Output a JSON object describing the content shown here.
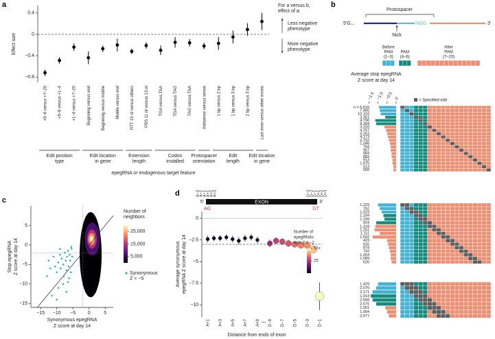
{
  "chart_data": [
    {
      "panel": "a",
      "type": "errorbar",
      "ylabel": "Effect size",
      "xlabel": "epegRNA or endogenous target feature",
      "categories": [
        "+5–6 versus +7–20",
        "+5–6 versus +1–4",
        "+1–4 versus +7–20",
        "Beginning versus end",
        "Beginning versus middle",
        "Middle versus end",
        "RTT 15 nt versus others",
        "PBS 11 nt versus 13 nt",
        "TGA versus TAA",
        "TGA versus TAG",
        "TAG versus TAA",
        "Antisense versus sense",
        "1 bp versus 2 bp",
        "1 bp versus 3 bp",
        "2 bp versus 3 bp",
        "Last exon versus other exons"
      ],
      "values": [
        -0.72,
        -0.49,
        -0.24,
        -0.44,
        -0.27,
        -0.2,
        -0.32,
        -0.21,
        -0.3,
        -0.15,
        -0.16,
        -0.22,
        -0.17,
        -0.05,
        0.09,
        0.24
      ],
      "errors": [
        0.06,
        0.06,
        0.07,
        0.12,
        0.06,
        0.12,
        0.05,
        0.06,
        0.09,
        0.1,
        0.07,
        0.06,
        0.12,
        0.12,
        0.12,
        0.16
      ],
      "color": "#000000",
      "ylim": [
        -0.9,
        0.54
      ],
      "yticks": [
        {
          "value": -0.8,
          "label": "−0.8"
        },
        {
          "value": -0.4,
          "label": "−0.4"
        },
        0,
        0.4
      ],
      "reference_line": 0,
      "groups": [
        {
          "lines": [
            "Edit position",
            "type"
          ],
          "size": 3
        },
        {
          "lines": [
            "Edit location",
            "in gene"
          ],
          "size": 3
        },
        {
          "lines": [
            "Extension",
            "length"
          ],
          "size": 2
        },
        {
          "lines": [
            "Codon",
            "installed"
          ],
          "size": 3
        },
        {
          "lines": [
            "Protospacer",
            "orientation"
          ],
          "size": 1
        },
        {
          "lines": [
            "Edit",
            "length"
          ],
          "size": 3
        },
        {
          "lines": [
            "Edit location",
            "in gene"
          ],
          "size": 1
        }
      ],
      "annotation": {
        "title_lines": [
          "For a versus b,",
          "effect of a:"
        ],
        "up_lines": [
          "Less negative",
          "phenotype"
        ],
        "down_lines": [
          "More negative",
          "phenotype"
        ]
      }
    },
    {
      "panel": "b",
      "type": "heatmap-bar",
      "diagram": {
        "protospacer": "Protospacer",
        "five_prime": "5′G...",
        "pam": "NGG",
        "three_prime": "3′",
        "nick": "Nick",
        "regions": [
          {
            "lines": [
              "Before",
              "PAM",
              "(1–3)"
            ],
            "size": 3,
            "color": "#45b2d4"
          },
          {
            "lines": [
              "PAM",
              "(4–6)"
            ],
            "size": 3,
            "color": "#178a7e"
          },
          {
            "lines": [
              "After",
              "PAM",
              "(7–20)"
            ],
            "size": 14,
            "color": "#ec8f73"
          }
        ]
      },
      "xlabel_lines": [
        "Average stop epegRNA",
        "Z score at day 14"
      ],
      "xlim": [
        -2.2,
        0
      ],
      "xticks": [
        {
          "value": -1.5,
          "label": "−1.5"
        },
        {
          "value": -1,
          "label": "−1.0"
        },
        {
          "value": -0.5,
          "label": "−0.5"
        },
        0
      ],
      "legend": "= Specified edit",
      "edit_color": "#5e5e5e",
      "groups": [
        {
          "n_labels": [
            "n = 5,616",
            "7,465",
            "10,103",
            "3,361",
            "4,796",
            "8,394",
            "3,159",
            "4,767",
            "6,263",
            "4,173",
            "2,752",
            "1,048",
            "764",
            "957",
            "964",
            "883",
            "913",
            "1,075",
            "613",
            "593"
          ],
          "values": [
            -0.95,
            -0.9,
            -0.85,
            -0.6,
            -1.15,
            -1.1,
            -0.65,
            -0.55,
            -0.5,
            -0.45,
            -0.4,
            -0.35,
            -0.3,
            -0.3,
            -0.25,
            -0.25,
            -0.2,
            -0.2,
            -0.15,
            -0.15
          ]
        },
        {
          "n_labels": [
            "1,229",
            "752",
            "1,523",
            "1,184",
            "1,199",
            "914",
            "1,318",
            "1,261",
            "1,111",
            "1,502",
            "423",
            "616",
            "874",
            "743",
            "1,264",
            "1,089",
            "620"
          ],
          "values": [
            -1.0,
            -0.9,
            -0.8,
            -0.7,
            -0.65,
            -1.1,
            -1.15,
            -1.2,
            -0.9,
            -1.3,
            -0.5,
            -0.45,
            -0.4,
            -0.35,
            -0.3,
            -0.3,
            -0.25
          ]
        },
        {
          "n_labels": [
            "1,429",
            "2,076",
            "2,171",
            "1,914",
            "2,568",
            "2,675",
            "1,001",
            "1,904",
            "2,077"
          ],
          "values": [
            -1.0,
            -1.1,
            -1.3,
            -1.4,
            -1.3,
            -1.1,
            -0.6,
            -0.5,
            -0.4
          ]
        }
      ]
    },
    {
      "panel": "c",
      "type": "scatter",
      "xlabel_lines": [
        "Synonymous epegRNA",
        "Z score at day 14"
      ],
      "ylabel_lines": [
        "Stop epegRNA",
        "Z score at day 14"
      ],
      "xlim": [
        -18,
        7.5
      ],
      "ylim": [
        -16,
        10
      ],
      "xticks": [
        {
          "value": -15,
          "label": "−15"
        },
        {
          "value": -10,
          "label": "−10"
        },
        {
          "value": -5,
          "label": "−5"
        },
        0,
        5
      ],
      "yticks": [
        5,
        0,
        {
          "value": -5,
          "label": "−5"
        },
        {
          "value": -10,
          "label": "−10"
        },
        {
          "value": -15,
          "label": "−15"
        }
      ],
      "reference_lines": [
        {
          "axis": "x",
          "value": -2
        },
        {
          "axis": "y",
          "value": -2
        }
      ],
      "diagonal": true,
      "series": [
        {
          "name_lines": [
            "Synonymous",
            "Z < −5"
          ],
          "color": "#2bb5a0",
          "x": [
            -12.5,
            -11,
            -10.5,
            -10,
            -9.5,
            -9,
            -8.8,
            -8.5,
            -8,
            -7.8,
            -7.5,
            -7.2,
            -7,
            -6.8,
            -6.5,
            -6.3,
            -6,
            -5.8,
            -5.6,
            -5.4,
            -5.2,
            -9.5,
            -8,
            -6.5,
            -11.5,
            -10,
            -7,
            -13,
            -12,
            -5.5,
            -6.2,
            -9
          ],
          "values": [
            -4,
            -3,
            -5.5,
            -7,
            -4.5,
            -2.5,
            -6,
            -3.5,
            -5,
            -8,
            -2,
            -4,
            -6.5,
            -3,
            -1.5,
            -5.5,
            -2.5,
            -4,
            -7,
            -1,
            -3,
            -11,
            -10,
            -9.5,
            -13,
            -14,
            -12,
            -8,
            -6,
            -0.5,
            -8.5,
            -1
          ]
        }
      ],
      "density": {
        "title_lines": [
          "Number of",
          "neighbors"
        ],
        "lim": [
          0,
          30000
        ],
        "ticks": [
          {
            "value": 5000,
            "label": "5,000"
          },
          {
            "value": 15000,
            "label": "15,000"
          },
          {
            "value": 25000,
            "label": "25,000"
          }
        ],
        "colors": [
          "#000004",
          "#51127c",
          "#b73779",
          "#fc8961",
          "#fcfdbf"
        ]
      }
    },
    {
      "panel": "d",
      "type": "dot-errorbar",
      "ylabel_lines": [
        "Average synonymous",
        "epegRNA Z score at day 14"
      ],
      "xlabel": "Distance from ends of exon",
      "categories": [
        "A+1",
        null,
        "A+3",
        null,
        "A+5",
        null,
        "A+7",
        null,
        "A+9",
        "...",
        "D−9",
        null,
        "D−7",
        null,
        "D−5",
        null,
        "D−3",
        null,
        "D−1"
      ],
      "values": [
        -2.4,
        -2.3,
        -2.3,
        -2.2,
        -2.4,
        -2.6,
        -2.3,
        -2.2,
        -2.5,
        null,
        -2.9,
        -2.6,
        -2.7,
        -2.9,
        -3.0,
        -3.1,
        -3.1,
        -3.6,
        -9.0
      ],
      "errors": [
        0.4,
        0.35,
        0.35,
        0.35,
        0.4,
        0.45,
        0.4,
        0.35,
        0.4,
        null,
        0.45,
        0.4,
        0.4,
        0.4,
        0.35,
        0.35,
        0.35,
        0.4,
        1.6
      ],
      "counts": [
        3,
        3,
        3,
        2,
        3,
        4,
        3,
        2,
        3,
        null,
        22,
        26,
        28,
        30,
        33,
        36,
        38,
        44,
        60
      ],
      "ylim": [
        -11.4,
        0.8
      ],
      "yticks": [
        0,
        {
          "value": -2.5,
          "label": "−2.5"
        },
        {
          "value": -5,
          "label": "−5"
        },
        {
          "value": -7.5,
          "label": "−7.5"
        },
        {
          "value": -10,
          "label": "−10"
        }
      ],
      "reference_line": -3,
      "colorbar": {
        "title_lines": [
          "Number of",
          "epegRNAs",
          "with Z < −2"
        ],
        "lim": [
          0,
          50
        ],
        "ticks": [
          25,
          {
            "value": 50,
            "label": "50+"
          }
        ],
        "colors": [
          "#000004",
          "#51127c",
          "#b73779",
          "#fc8961",
          "#fcfdbf"
        ]
      },
      "exon": {
        "five": "5′",
        "three": "3′",
        "label": "EXON",
        "left_site": "AG",
        "right_site": "GT",
        "left_labels": [
          "A−3",
          "A−2",
          "A−1",
          "A+1",
          "A+2",
          "A+3"
        ],
        "right_labels": [
          "D−3",
          "D−2",
          "D−1",
          "D+1",
          "D+2",
          "D+3"
        ]
      }
    }
  ]
}
